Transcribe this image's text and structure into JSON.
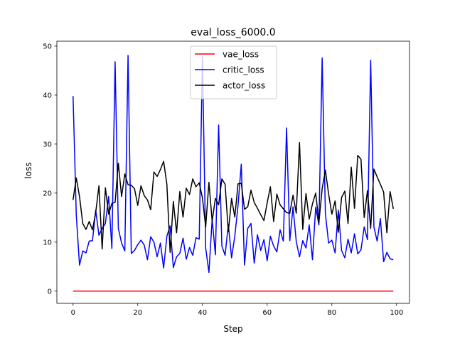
{
  "chart_data": {
    "type": "line",
    "title": "eval_loss_6000.0",
    "xlabel": "Step",
    "ylabel": "loss",
    "xlim": [
      -5,
      104
    ],
    "ylim": [
      -2.5,
      51
    ],
    "xticks": [
      0,
      20,
      40,
      60,
      80,
      100
    ],
    "yticks": [
      0,
      10,
      20,
      30,
      40,
      50
    ],
    "grid": false,
    "legend_position": "top-center",
    "x": [
      0,
      1,
      2,
      3,
      4,
      5,
      6,
      7,
      8,
      9,
      10,
      11,
      12,
      13,
      14,
      15,
      16,
      17,
      18,
      19,
      20,
      21,
      22,
      23,
      24,
      25,
      26,
      27,
      28,
      29,
      30,
      31,
      32,
      33,
      34,
      35,
      36,
      37,
      38,
      39,
      40,
      41,
      42,
      43,
      44,
      45,
      46,
      47,
      48,
      49,
      50,
      51,
      52,
      53,
      54,
      55,
      56,
      57,
      58,
      59,
      60,
      61,
      62,
      63,
      64,
      65,
      66,
      67,
      68,
      69,
      70,
      71,
      72,
      73,
      74,
      75,
      76,
      77,
      78,
      79,
      80,
      81,
      82,
      83,
      84,
      85,
      86,
      87,
      88,
      89,
      90,
      91,
      92,
      93,
      94,
      95,
      96,
      97,
      98,
      99
    ],
    "series": [
      {
        "name": "vae_loss",
        "color": "#ff0000",
        "values": [
          0,
          0,
          0,
          0,
          0,
          0,
          0,
          0,
          0,
          0,
          0,
          0,
          0,
          0,
          0,
          0,
          0,
          0,
          0,
          0,
          0,
          0,
          0,
          0,
          0,
          0,
          0,
          0,
          0,
          0,
          0,
          0,
          0,
          0,
          0,
          0,
          0,
          0,
          0,
          0,
          0,
          0,
          0,
          0,
          0,
          0,
          0,
          0,
          0,
          0,
          0,
          0,
          0,
          0,
          0,
          0,
          0,
          0,
          0,
          0,
          0,
          0,
          0,
          0,
          0,
          0,
          0,
          0,
          0,
          0,
          0,
          0,
          0,
          0,
          0,
          0,
          0,
          0,
          0,
          0,
          0,
          0,
          0,
          0,
          0,
          0,
          0,
          0,
          0,
          0,
          0,
          0,
          0,
          0,
          0,
          0,
          0,
          0,
          0,
          0
        ]
      },
      {
        "name": "critic_loss",
        "color": "#0000ff",
        "values": [
          39.8,
          15.5,
          5.3,
          8.2,
          7.8,
          10.2,
          10.3,
          16.5,
          11.4,
          12.8,
          13.8,
          19.3,
          8.7,
          46.8,
          12.8,
          9.8,
          8.2,
          48.1,
          7.7,
          8.3,
          9.5,
          10.4,
          9.4,
          6.4,
          11.1,
          10.0,
          7.0,
          9.8,
          4.7,
          11.2,
          13.3,
          4.8,
          7.0,
          7.7,
          10.8,
          6.5,
          8.9,
          7.3,
          10.9,
          10.6,
          47.8,
          8.8,
          3.8,
          14.7,
          7.4,
          33.9,
          9.2,
          7.3,
          13.6,
          6.8,
          11.2,
          17.5,
          25.9,
          5.3,
          12.8,
          13.8,
          5.7,
          11.5,
          8.3,
          10.5,
          6.2,
          11.2,
          9.2,
          8.0,
          12.5,
          10.2,
          33.3,
          10.3,
          17.2,
          10.1,
          7.0,
          10.3,
          8.8,
          13.5,
          6.4,
          17.1,
          13.5,
          47.6,
          15.8,
          9.8,
          10.4,
          7.8,
          16.5,
          8.3,
          6.8,
          10.6,
          7.8,
          11.7,
          7.6,
          8.4,
          13.1,
          10.5,
          47.1,
          13.1,
          10.2,
          14.8,
          6.0,
          7.9,
          6.6,
          6.4
        ]
      },
      {
        "name": "actor_loss",
        "color": "#000000",
        "values": [
          18.6,
          23.1,
          19.3,
          13.8,
          12.6,
          14.2,
          12.5,
          16.0,
          21.5,
          8.6,
          21.1,
          15.7,
          17.9,
          18.1,
          26.1,
          19.3,
          23.9,
          21.7,
          21.6,
          20.9,
          17.5,
          21.5,
          19.5,
          18.6,
          16.6,
          24.3,
          23.4,
          24.8,
          26.5,
          21.8,
          7.9,
          18.3,
          11.9,
          20.3,
          15.1,
          21.0,
          19.7,
          22.9,
          21.3,
          22.1,
          19.0,
          13.1,
          22.2,
          14.3,
          18.9,
          17.6,
          22.9,
          21.8,
          12.1,
          18.9,
          15.1,
          21.9,
          22.0,
          16.7,
          17.2,
          20.6,
          18.1,
          16.9,
          15.6,
          14.4,
          18.0,
          21.3,
          14.2,
          19.8,
          17.6,
          16.8,
          16.0,
          15.9,
          19.6,
          15.9,
          30.3,
          12.6,
          19.9,
          14.7,
          17.8,
          20.0,
          14.0,
          20.9,
          24.7,
          19.8,
          15.7,
          18.4,
          12.0,
          19.1,
          20.4,
          13.8,
          25.3,
          16.9,
          27.7,
          26.9,
          15.0,
          20.5,
          12.8,
          24.9,
          23.3,
          21.8,
          20.2,
          11.9,
          20.3,
          16.8
        ]
      }
    ]
  }
}
